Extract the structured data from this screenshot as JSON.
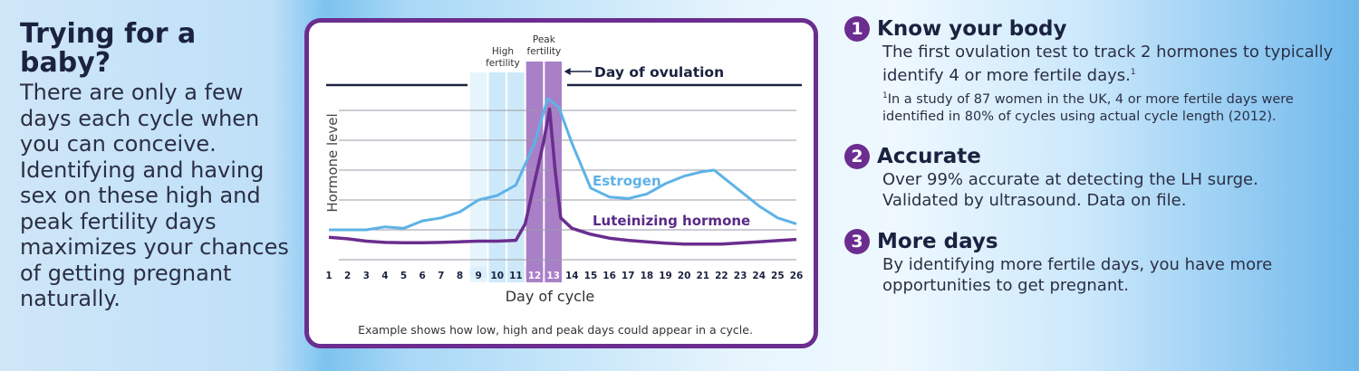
{
  "left": {
    "title": "Trying for a baby?",
    "body": "There are only a few days each cycle when you can conceive. Identifying and having sex on these high and peak fertility days maximizes your chances of getting pregnant naturally."
  },
  "chart_data": {
    "type": "line",
    "xlabel": "Day of cycle",
    "ylabel": "Hormone level",
    "x_ticks": [
      "1",
      "2",
      "3",
      "4",
      "5",
      "6",
      "7",
      "8",
      "9",
      "10",
      "11",
      "12",
      "13",
      "14",
      "15",
      "16",
      "17",
      "18",
      "19",
      "20",
      "21",
      "22",
      "23",
      "24",
      "25",
      "26"
    ],
    "xlim": [
      1,
      26
    ],
    "ylim": [
      0,
      6
    ],
    "grid": "horizontal",
    "series": [
      {
        "name": "Estrogen",
        "color": "#5eb2e6",
        "x": [
          1,
          2,
          3,
          4,
          5,
          6,
          7,
          8,
          9,
          10,
          11,
          12,
          12.7,
          13.3,
          14,
          15,
          16,
          17,
          18,
          19,
          20,
          21,
          21.6,
          22,
          23,
          24,
          25,
          26
        ],
        "y": [
          1.0,
          1.0,
          1.0,
          1.1,
          1.05,
          1.3,
          1.4,
          1.6,
          2.0,
          2.15,
          2.5,
          3.9,
          5.4,
          5.1,
          3.9,
          2.4,
          2.1,
          2.05,
          2.2,
          2.55,
          2.8,
          2.95,
          3.0,
          2.8,
          2.3,
          1.8,
          1.4,
          1.2
        ]
      },
      {
        "name": "Luteinizing hormone",
        "color": "#6b2d8f",
        "x": [
          1,
          2,
          3,
          4,
          5,
          6,
          7,
          8,
          9,
          10,
          11,
          11.5,
          12,
          12.5,
          12.8,
          13.1,
          13.4,
          14,
          15,
          16,
          17,
          18,
          19,
          20,
          21,
          22,
          23,
          24,
          25,
          26
        ],
        "y": [
          0.75,
          0.7,
          0.62,
          0.58,
          0.57,
          0.57,
          0.58,
          0.6,
          0.62,
          0.62,
          0.65,
          1.2,
          2.6,
          4.0,
          5.05,
          3.0,
          1.4,
          1.05,
          0.85,
          0.72,
          0.65,
          0.6,
          0.55,
          0.52,
          0.52,
          0.52,
          0.56,
          0.6,
          0.64,
          0.68
        ]
      }
    ],
    "bands": [
      {
        "days": [
          9,
          10,
          11
        ],
        "label": "High fertility",
        "color": "#cde9f9"
      },
      {
        "days": [
          12,
          13
        ],
        "label": "Peak fertility",
        "color": "#a97fc7"
      }
    ],
    "annotation": "Day of ovulation",
    "ovulation_day": 13,
    "caption": "Example shows how low, high and peak days could appear in a cycle."
  },
  "right": {
    "items": [
      {
        "num": "1",
        "title": "Know your body",
        "body": "The first ovulation test to track 2 hormones to typically identify 4 or more fertile days.",
        "sup": "1",
        "note": "In a study of 87 women in the UK, 4 or more fertile days were identified in 80% of cycles using actual cycle length (2012).",
        "note_sup": "1"
      },
      {
        "num": "2",
        "title": "Accurate",
        "body": "Over 99% accurate at detecting the LH surge. Validated by ultrasound. Data on file."
      },
      {
        "num": "3",
        "title": "More days",
        "body": "By identifying more fertile days, you have more opportunities to get pregnant."
      }
    ]
  }
}
